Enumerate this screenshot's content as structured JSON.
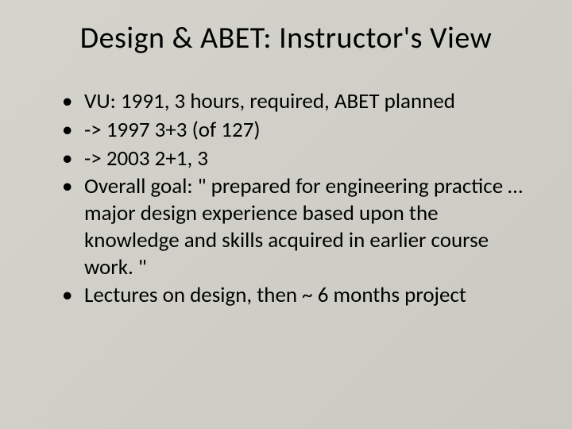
{
  "slide": {
    "title": "Design & ABET: Instructor's View",
    "bullets": [
      "VU: 1991, 3 hours, required, ABET planned",
      "-> 1997 3+3 (of 127)",
      "-> 2003 2+1, 3",
      "Overall goal: \" prepared for engineering practice  … major design experience based upon the knowledge and skills acquired in earlier course work. \"",
      "Lectures on design, then ~ 6 months project"
    ],
    "colors": {
      "background_start": "#d4d4cc",
      "background_end": "#cacac2",
      "text": "#000000"
    },
    "typography": {
      "title_fontsize": 38,
      "body_fontsize": 27,
      "font_family": "Calibri"
    }
  }
}
